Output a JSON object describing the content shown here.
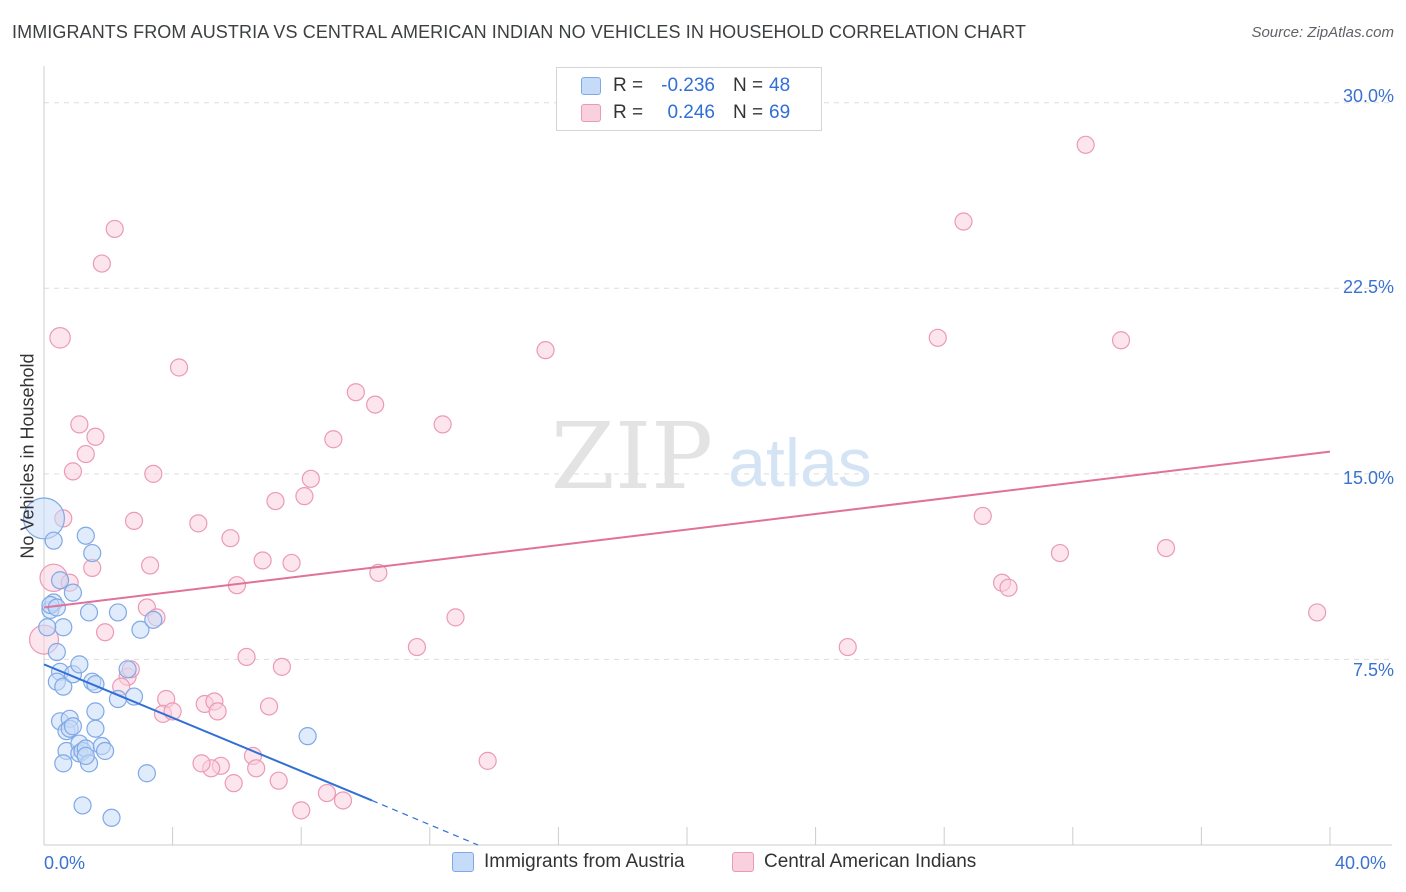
{
  "title": "IMMIGRANTS FROM AUSTRIA VS CENTRAL AMERICAN INDIAN NO VEHICLES IN HOUSEHOLD CORRELATION CHART",
  "source": "Source: ZipAtlas.com",
  "watermark": {
    "zip": "ZIP",
    "atlas": "atlas"
  },
  "legend": {
    "rows": [
      {
        "r_label": "R =",
        "r_value": "-0.236",
        "n_label": "N =",
        "n_value": "48"
      },
      {
        "r_label": "R =",
        "r_value": "0.246",
        "n_label": "N =",
        "n_value": "69"
      }
    ]
  },
  "bottom_legend": {
    "series_a": "Immigrants from Austria",
    "series_b": "Central American Indians"
  },
  "colors": {
    "blue_fill": "#c6dbf7",
    "blue_stroke": "#7fa9e6",
    "blue_line": "#2f6fd6",
    "pink_fill": "#f9d0de",
    "pink_stroke": "#eb9ab5",
    "pink_line": "#e0719a",
    "tick_text": "#3a72d0",
    "grid": "#dddddd"
  },
  "chart_data": {
    "type": "scatter",
    "title": "IMMIGRANTS FROM AUSTRIA VS CENTRAL AMERICAN INDIAN NO VEHICLES IN HOUSEHOLD CORRELATION CHART",
    "xlabel": "",
    "ylabel": "No Vehicles in Household",
    "xlim": [
      0,
      40
    ],
    "ylim": [
      0,
      31
    ],
    "x_tick_labels": [
      "0.0%",
      "40.0%"
    ],
    "y_ticks": [
      7.5,
      15.0,
      22.5,
      30.0
    ],
    "y_tick_labels": [
      "7.5%",
      "15.0%",
      "22.5%",
      "30.0%"
    ],
    "series": [
      {
        "name": "Immigrants from Austria",
        "r": -0.236,
        "n": 48,
        "trend": {
          "x0": 0,
          "y0": 7.3,
          "x1": 10.2,
          "y1": 1.8,
          "dash_to_x": 13.5,
          "dash_to_y": 0.0
        },
        "points": [
          [
            0.0,
            13.2,
            2.4
          ],
          [
            0.2,
            9.5,
            1
          ],
          [
            0.3,
            9.8,
            1
          ],
          [
            0.2,
            9.7,
            1
          ],
          [
            0.3,
            12.3,
            1
          ],
          [
            0.5,
            10.7,
            1
          ],
          [
            0.4,
            7.8,
            1
          ],
          [
            0.6,
            8.8,
            1
          ],
          [
            0.5,
            7.0,
            1
          ],
          [
            0.4,
            6.6,
            1
          ],
          [
            0.6,
            6.4,
            1
          ],
          [
            0.5,
            5.0,
            1
          ],
          [
            0.7,
            4.6,
            1
          ],
          [
            0.8,
            5.1,
            1
          ],
          [
            0.8,
            4.7,
            1
          ],
          [
            0.7,
            3.8,
            1
          ],
          [
            0.6,
            3.3,
            1
          ],
          [
            0.9,
            6.9,
            1
          ],
          [
            1.1,
            7.3,
            1
          ],
          [
            1.1,
            4.1,
            1
          ],
          [
            1.1,
            3.7,
            1
          ],
          [
            1.2,
            3.8,
            1
          ],
          [
            1.3,
            3.9,
            1
          ],
          [
            1.4,
            3.3,
            1
          ],
          [
            1.5,
            6.6,
            1
          ],
          [
            1.6,
            6.5,
            1
          ],
          [
            1.6,
            5.4,
            1
          ],
          [
            1.3,
            12.5,
            1
          ],
          [
            1.5,
            11.8,
            1
          ],
          [
            0.9,
            10.2,
            1
          ],
          [
            1.4,
            9.4,
            1
          ],
          [
            1.8,
            4.0,
            1
          ],
          [
            1.9,
            3.8,
            1
          ],
          [
            2.3,
            9.4,
            1
          ],
          [
            2.3,
            5.9,
            1
          ],
          [
            2.6,
            7.1,
            1
          ],
          [
            2.8,
            6.0,
            1
          ],
          [
            3.0,
            8.7,
            1
          ],
          [
            3.4,
            9.1,
            1
          ],
          [
            3.2,
            2.9,
            1
          ],
          [
            1.2,
            1.6,
            1
          ],
          [
            2.1,
            1.1,
            1
          ],
          [
            8.2,
            4.4,
            1
          ],
          [
            0.1,
            8.8,
            1
          ],
          [
            0.4,
            9.6,
            1
          ],
          [
            0.9,
            4.8,
            1
          ],
          [
            1.6,
            4.7,
            1
          ],
          [
            1.3,
            3.6,
            1
          ]
        ]
      },
      {
        "name": "Central American Indians",
        "r": 0.246,
        "n": 69,
        "trend": {
          "x0": 0,
          "y0": 9.6,
          "x1": 40,
          "y1": 15.9
        },
        "points": [
          [
            0.0,
            8.3,
            1.7
          ],
          [
            0.3,
            10.8,
            1.6
          ],
          [
            0.5,
            20.5,
            1.2
          ],
          [
            0.6,
            13.2,
            1
          ],
          [
            0.8,
            10.6,
            1
          ],
          [
            0.9,
            15.1,
            1
          ],
          [
            1.1,
            17.0,
            1
          ],
          [
            1.3,
            15.8,
            1
          ],
          [
            1.6,
            16.5,
            1
          ],
          [
            1.5,
            11.2,
            1
          ],
          [
            1.8,
            23.5,
            1
          ],
          [
            2.2,
            24.9,
            1
          ],
          [
            1.9,
            8.6,
            1
          ],
          [
            2.6,
            6.8,
            1
          ],
          [
            2.7,
            7.1,
            1
          ],
          [
            2.8,
            13.1,
            1
          ],
          [
            2.4,
            6.4,
            1
          ],
          [
            3.2,
            9.6,
            1
          ],
          [
            3.3,
            11.3,
            1
          ],
          [
            3.4,
            15.0,
            1
          ],
          [
            3.5,
            9.2,
            1
          ],
          [
            3.8,
            5.9,
            1
          ],
          [
            3.7,
            5.3,
            1
          ],
          [
            4.0,
            5.4,
            1
          ],
          [
            4.2,
            19.3,
            1
          ],
          [
            4.8,
            13.0,
            1
          ],
          [
            5.0,
            5.7,
            1
          ],
          [
            5.3,
            5.8,
            1
          ],
          [
            5.4,
            5.4,
            1
          ],
          [
            5.5,
            3.2,
            1
          ],
          [
            5.2,
            3.1,
            1
          ],
          [
            4.9,
            3.3,
            1
          ],
          [
            5.8,
            12.4,
            1
          ],
          [
            5.9,
            2.5,
            1
          ],
          [
            6.0,
            10.5,
            1
          ],
          [
            6.3,
            7.6,
            1
          ],
          [
            6.5,
            3.6,
            1
          ],
          [
            6.6,
            3.1,
            1
          ],
          [
            6.8,
            11.5,
            1
          ],
          [
            7.0,
            5.6,
            1
          ],
          [
            7.3,
            2.6,
            1
          ],
          [
            7.4,
            7.2,
            1
          ],
          [
            7.2,
            13.9,
            1
          ],
          [
            7.7,
            11.4,
            1
          ],
          [
            8.1,
            14.1,
            1
          ],
          [
            8.3,
            14.8,
            1
          ],
          [
            8.0,
            1.4,
            1
          ],
          [
            8.8,
            2.1,
            1
          ],
          [
            9.0,
            16.4,
            1
          ],
          [
            9.3,
            1.8,
            1
          ],
          [
            9.7,
            18.3,
            1
          ],
          [
            10.3,
            17.8,
            1
          ],
          [
            10.4,
            11.0,
            1
          ],
          [
            11.6,
            8.0,
            1
          ],
          [
            12.4,
            17.0,
            1
          ],
          [
            12.8,
            9.2,
            1
          ],
          [
            13.8,
            3.4,
            1
          ],
          [
            15.6,
            20.0,
            1
          ],
          [
            25.0,
            8.0,
            1
          ],
          [
            27.8,
            20.5,
            1
          ],
          [
            28.6,
            25.2,
            1
          ],
          [
            29.2,
            13.3,
            1
          ],
          [
            29.8,
            10.6,
            1
          ],
          [
            30.0,
            10.4,
            1
          ],
          [
            31.6,
            11.8,
            1
          ],
          [
            32.4,
            28.3,
            1
          ],
          [
            33.5,
            20.4,
            1
          ],
          [
            34.9,
            12.0,
            1
          ],
          [
            39.6,
            9.4,
            1
          ]
        ]
      }
    ]
  }
}
